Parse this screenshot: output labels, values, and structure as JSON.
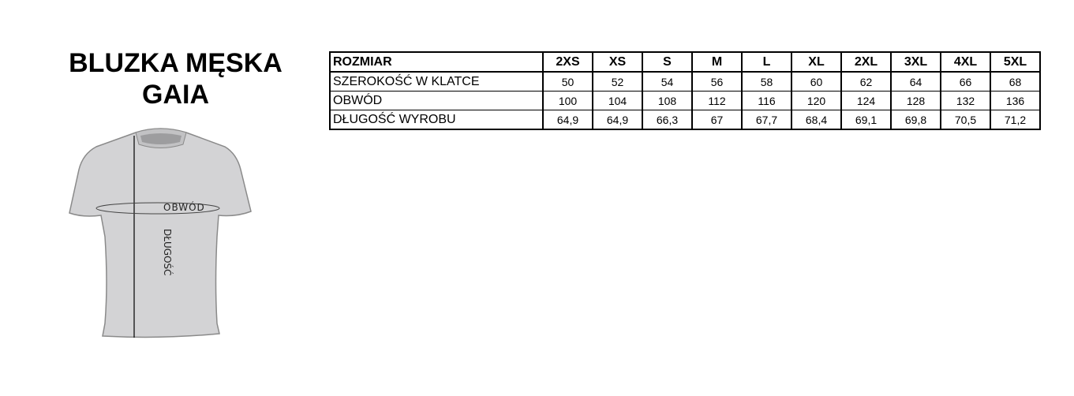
{
  "title_line1": "BLUZKA MĘSKA",
  "title_line2": "GAIA",
  "diagram": {
    "girth_label": "OBWÓD",
    "length_label": "DŁUGOŚĆ"
  },
  "table": {
    "header_label": "ROZMIAR",
    "sizes": [
      "2XS",
      "XS",
      "S",
      "M",
      "L",
      "XL",
      "2XL",
      "3XL",
      "4XL",
      "5XL"
    ],
    "rows": [
      {
        "label": "SZEROKOŚĆ W KLATCE",
        "values": [
          "50",
          "52",
          "54",
          "56",
          "58",
          "60",
          "62",
          "64",
          "66",
          "68"
        ]
      },
      {
        "label": "OBWÓD",
        "values": [
          "100",
          "104",
          "108",
          "112",
          "116",
          "120",
          "124",
          "128",
          "132",
          "136"
        ]
      },
      {
        "label": "DŁUGOŚĆ WYROBU",
        "values": [
          "64,9",
          "64,9",
          "66,3",
          "67",
          "67,7",
          "68,4",
          "69,1",
          "69,8",
          "70,5",
          "71,2"
        ]
      }
    ]
  }
}
